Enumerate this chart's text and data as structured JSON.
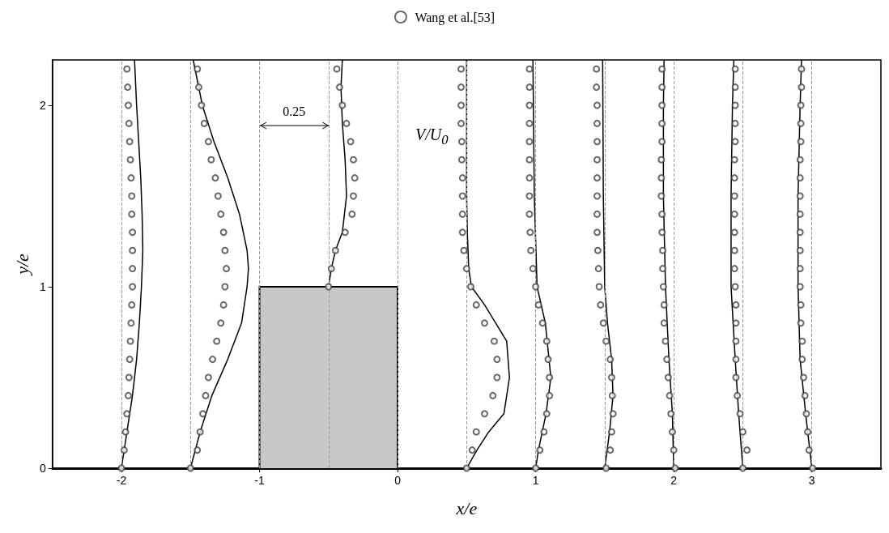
{
  "chart_data": {
    "type": "line",
    "xlabel": "x/e",
    "ylabel": "y/e",
    "xlim": [
      -2.5,
      3.5
    ],
    "ylim": [
      0,
      2.25
    ],
    "xticks": [
      -2,
      -1,
      0,
      1,
      2,
      3
    ],
    "yticks": [
      0,
      1,
      2
    ],
    "grid": false,
    "legend": "top",
    "annotations": [
      "0.25",
      "V/U$_{0}$"
    ],
    "ref_lines": [
      {
        "axis": "x",
        "value": -2,
        "color": "#999999",
        "line_style": "dashed"
      },
      {
        "axis": "x",
        "value": -1.5,
        "color": "#999999",
        "line_style": "dashed"
      },
      {
        "axis": "x",
        "value": -1,
        "color": "#999999",
        "line_style": "dashed"
      },
      {
        "axis": "x",
        "value": -0.5,
        "color": "#999999",
        "line_style": "dashed"
      },
      {
        "axis": "x",
        "value": 0,
        "color": "#999999",
        "line_style": "dashed"
      },
      {
        "axis": "x",
        "value": 0.5,
        "color": "#999999",
        "line_style": "dashed"
      },
      {
        "axis": "x",
        "value": 1,
        "color": "#999999",
        "line_style": "dashed"
      },
      {
        "axis": "x",
        "value": 1.5,
        "color": "#999999",
        "line_style": "dashed"
      },
      {
        "axis": "x",
        "value": 2,
        "color": "#999999",
        "line_style": "dashed"
      },
      {
        "axis": "x",
        "value": 2.5,
        "color": "#999999",
        "line_style": "dashed"
      },
      {
        "axis": "x",
        "value": 3,
        "color": "#999999",
        "line_style": "dashed"
      }
    ],
    "series": [
      {
        "name": "Wang et al.[53]",
        "type": "scatter",
        "marker": "circle",
        "color": "#444444",
        "x": [
          -2,
          -1.98,
          -1.97,
          -1.96,
          -1.95,
          -1.945,
          -1.94,
          -1.935,
          -1.93,
          -1.925,
          -1.92,
          -1.92,
          -1.92,
          -1.92,
          -1.925,
          -1.925,
          -1.93,
          -1.935,
          -1.94,
          -1.945,
          -1.95,
          -1.955,
          -1.96,
          -1.5,
          -1.45,
          -1.43,
          -1.41,
          -1.39,
          -1.37,
          -1.34,
          -1.31,
          -1.28,
          -1.26,
          -1.25,
          -1.24,
          -1.25,
          -1.26,
          -1.28,
          -1.3,
          -1.32,
          -1.35,
          -1.37,
          -1.4,
          -1.42,
          -1.44,
          -1.45,
          -0.5,
          -0.48,
          -0.45,
          -0.38,
          -0.33,
          -0.32,
          -0.31,
          -0.32,
          -0.34,
          -0.37,
          -0.4,
          -0.42,
          -0.44,
          0.5,
          0.54,
          0.57,
          0.63,
          0.69,
          0.72,
          0.72,
          0.7,
          0.63,
          0.57,
          0.53,
          0.5,
          0.48,
          0.47,
          0.47,
          0.47,
          0.47,
          0.465,
          0.465,
          0.46,
          0.46,
          0.46,
          0.46,
          1,
          1.03,
          1.06,
          1.08,
          1.1,
          1.1,
          1.09,
          1.08,
          1.05,
          1.02,
          1,
          0.98,
          0.965,
          0.96,
          0.955,
          0.955,
          0.955,
          0.955,
          0.955,
          0.955,
          0.955,
          0.955,
          0.955,
          1.51,
          1.54,
          1.55,
          1.56,
          1.555,
          1.55,
          1.54,
          1.51,
          1.49,
          1.47,
          1.46,
          1.455,
          1.45,
          1.445,
          1.445,
          1.445,
          1.445,
          1.445,
          1.445,
          1.445,
          1.445,
          1.44,
          1.44,
          2.01,
          2,
          1.99,
          1.98,
          1.97,
          1.96,
          1.95,
          1.94,
          1.93,
          1.93,
          1.925,
          1.92,
          1.92,
          1.915,
          1.915,
          1.91,
          1.91,
          1.91,
          1.915,
          1.915,
          1.915,
          1.915,
          1.915,
          2.5,
          2.53,
          2.5,
          2.48,
          2.46,
          2.45,
          2.45,
          2.45,
          2.45,
          2.45,
          2.445,
          2.44,
          2.44,
          2.44,
          2.44,
          2.44,
          2.44,
          2.44,
          2.445,
          2.445,
          2.445,
          2.445,
          2.445,
          3.005,
          2.98,
          2.97,
          2.96,
          2.95,
          2.94,
          2.93,
          2.93,
          2.92,
          2.92,
          2.915,
          2.915,
          2.915,
          2.915,
          2.915,
          2.915,
          2.915,
          2.915,
          2.92,
          2.92,
          2.92,
          2.925,
          2.925
        ],
        "values": [
          0,
          0.1,
          0.2,
          0.3,
          0.4,
          0.5,
          0.6,
          0.7,
          0.8,
          0.9,
          1,
          1.1,
          1.2,
          1.3,
          1.4,
          1.5,
          1.6,
          1.7,
          1.8,
          1.9,
          2,
          2.1,
          2.2,
          0,
          0.1,
          0.2,
          0.3,
          0.4,
          0.5,
          0.6,
          0.7,
          0.8,
          0.9,
          1,
          1.1,
          1.2,
          1.3,
          1.4,
          1.5,
          1.6,
          1.7,
          1.8,
          1.9,
          2,
          2.1,
          2.2,
          1,
          1.1,
          1.2,
          1.3,
          1.4,
          1.5,
          1.6,
          1.7,
          1.8,
          1.9,
          2,
          2.1,
          2.2,
          0,
          0.1,
          0.2,
          0.3,
          0.4,
          0.5,
          0.6,
          0.7,
          0.8,
          0.9,
          1,
          1.1,
          1.2,
          1.3,
          1.4,
          1.5,
          1.6,
          1.7,
          1.8,
          1.9,
          2,
          2.1,
          2.2,
          0,
          0.1,
          0.2,
          0.3,
          0.4,
          0.5,
          0.6,
          0.7,
          0.8,
          0.9,
          1,
          1.1,
          1.2,
          1.3,
          1.4,
          1.5,
          1.6,
          1.7,
          1.8,
          1.9,
          2,
          2.1,
          2.2,
          0,
          0.1,
          0.2,
          0.3,
          0.4,
          0.5,
          0.6,
          0.7,
          0.8,
          0.9,
          1,
          1.1,
          1.2,
          1.3,
          1.4,
          1.5,
          1.6,
          1.7,
          1.8,
          1.9,
          2,
          2.1,
          2.2,
          0,
          0.1,
          0.2,
          0.3,
          0.4,
          0.5,
          0.6,
          0.7,
          0.8,
          0.9,
          1,
          1.1,
          1.2,
          1.3,
          1.4,
          1.5,
          1.6,
          1.7,
          1.8,
          1.9,
          2,
          2.1,
          2.2,
          0,
          0.1,
          0.2,
          0.3,
          0.4,
          0.5,
          0.6,
          0.7,
          0.8,
          0.9,
          1,
          1.1,
          1.2,
          1.3,
          1.4,
          1.5,
          1.6,
          1.7,
          1.8,
          1.9,
          2,
          2.1,
          2.2,
          0,
          0.1,
          0.2,
          0.3,
          0.4,
          0.5,
          0.6,
          0.7,
          0.8,
          0.9,
          1,
          1.1,
          1.2,
          1.3,
          1.4,
          1.5,
          1.6,
          1.7,
          1.8,
          1.9,
          2,
          2.1,
          2.2
        ]
      },
      {
        "type": "area",
        "marker": "none",
        "color": "#c8c8c8",
        "x": [
          -1,
          -1,
          0,
          0
        ],
        "values": [
          0,
          1,
          1,
          0
        ]
      },
      {
        "marker": "none",
        "color": "#000000",
        "x": [
          -2,
          -1.96,
          -1.92,
          -1.89,
          -1.87,
          -1.855,
          -1.845,
          -1.85,
          -1.86,
          -1.875,
          -1.89,
          -1.905
        ],
        "values": [
          0,
          0.2,
          0.4,
          0.6,
          0.8,
          1,
          1.2,
          1.4,
          1.6,
          1.8,
          2,
          2.25
        ]
      },
      {
        "marker": "none",
        "color": "#000000",
        "x": [
          -1.5,
          -1.43,
          -1.345,
          -1.23,
          -1.13,
          -1.09,
          -1.08,
          -1.09,
          -1.145,
          -1.23,
          -1.33,
          -1.414,
          -1.48
        ],
        "values": [
          0,
          0.2,
          0.4,
          0.6,
          0.8,
          1,
          1.1,
          1.2,
          1.4,
          1.6,
          1.8,
          2,
          2.25
        ]
      },
      {
        "marker": "none",
        "color": "#000000",
        "x": [
          -0.5,
          -0.48,
          -0.45,
          -0.4,
          -0.37,
          -0.38,
          -0.4,
          -0.41,
          -0.4
        ],
        "values": [
          1,
          1.1,
          1.2,
          1.3,
          1.5,
          1.7,
          1.9,
          2.1,
          2.25
        ]
      },
      {
        "marker": "none",
        "color": "#000000",
        "x": [
          0.5,
          0.575,
          0.66,
          0.77,
          0.81,
          0.79,
          0.63,
          0.535,
          0.515,
          0.505,
          0.5,
          0.5
        ],
        "values": [
          0,
          0.1,
          0.2,
          0.3,
          0.5,
          0.7,
          0.9,
          1,
          1.1,
          1.3,
          1.5,
          2.25
        ]
      },
      {
        "marker": "none",
        "color": "#000000",
        "x": [
          1,
          1.02,
          1.075,
          1.11,
          1.07,
          1.01,
          0.99,
          0.98
        ],
        "values": [
          0,
          0.1,
          0.3,
          0.5,
          0.8,
          1,
          1.5,
          2.25
        ]
      },
      {
        "marker": "none",
        "color": "#000000",
        "x": [
          1.5,
          1.535,
          1.56,
          1.55,
          1.52,
          1.5,
          1.49,
          1.485
        ],
        "values": [
          0,
          0.2,
          0.4,
          0.6,
          0.8,
          1,
          1.5,
          2.25
        ]
      },
      {
        "marker": "none",
        "color": "#000000",
        "x": [
          2,
          1.99,
          1.965,
          1.94,
          1.925,
          1.925,
          1.93
        ],
        "values": [
          0,
          0.3,
          0.6,
          1,
          1.5,
          2,
          2.25
        ]
      },
      {
        "marker": "none",
        "color": "#000000",
        "x": [
          2.5,
          2.47,
          2.445,
          2.415,
          2.415,
          2.425,
          2.435
        ],
        "values": [
          0,
          0.3,
          0.6,
          1,
          1.5,
          2,
          2.25
        ]
      },
      {
        "marker": "none",
        "color": "#000000",
        "x": [
          3,
          2.955,
          2.915,
          2.9,
          2.9,
          2.915,
          2.925
        ],
        "values": [
          0,
          0.3,
          0.6,
          1,
          1.5,
          2,
          2.25
        ]
      }
    ]
  }
}
